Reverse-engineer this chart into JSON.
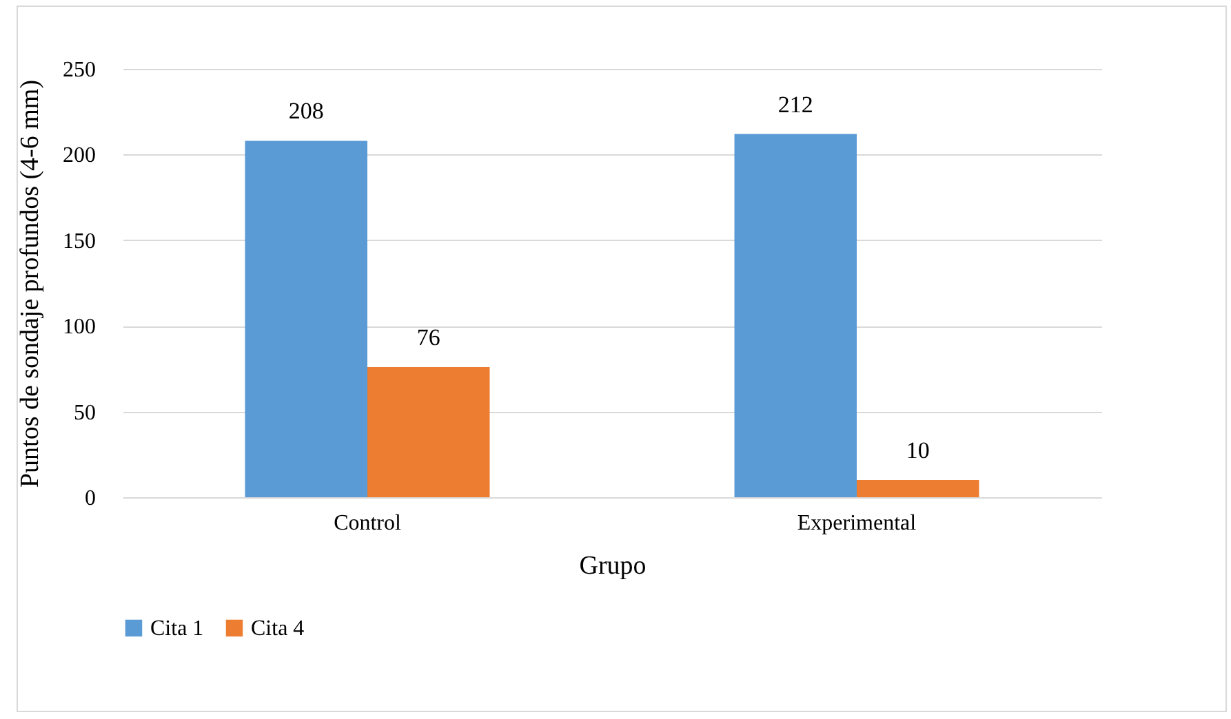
{
  "chart_data": {
    "type": "bar",
    "categories": [
      "Control",
      "Experimental"
    ],
    "series": [
      {
        "name": "Cita 1",
        "color": "#5b9bd5",
        "values": [
          208,
          212
        ]
      },
      {
        "name": "Cita 4",
        "color": "#ed7d31",
        "values": [
          76,
          10
        ]
      }
    ],
    "xlabel": "Grupo",
    "ylabel": "Puntos de sondaje profundos (4-6 mm)",
    "ylim": [
      0,
      250
    ],
    "yticks": [
      0,
      50,
      100,
      150,
      200,
      250
    ],
    "grid": "y",
    "legend": "bottom",
    "data_labels": true
  }
}
